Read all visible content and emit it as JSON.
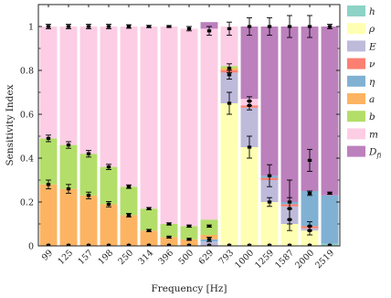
{
  "chart_data": {
    "type": "bar",
    "stacked": true,
    "xlabel": "Frequency [Hz]",
    "ylabel": "Sensitivity Index",
    "ylim": [
      0,
      1.1
    ],
    "yticks": [
      "0",
      "0.2",
      "0.4",
      "0.6",
      "0.8",
      "1"
    ],
    "grid": false,
    "legend_position": "right",
    "categories": [
      "99",
      "125",
      "157",
      "198",
      "250",
      "314",
      "396",
      "500",
      "629",
      "793",
      "1000",
      "1259",
      "1587",
      "2000",
      "2519"
    ],
    "series": [
      {
        "name": "h",
        "symbol": "h",
        "sub": "",
        "color": "#8dd3c7",
        "values": [
          0,
          0,
          0,
          0,
          0,
          0,
          0,
          0,
          0,
          0,
          0,
          0,
          0,
          0,
          0.01
        ]
      },
      {
        "name": "ρ",
        "symbol": "ρ",
        "sub": "",
        "color": "#ffffb3",
        "values": [
          0,
          0,
          0,
          0,
          0,
          0,
          0,
          0,
          0,
          0.65,
          0.45,
          0.2,
          0.1,
          0.07,
          0
        ]
      },
      {
        "name": "E",
        "symbol": "E",
        "sub": "",
        "color": "#bebada",
        "values": [
          0,
          0,
          0,
          0,
          0,
          0,
          0,
          0,
          0.02,
          0.14,
          0.18,
          0.1,
          0.08,
          0.01,
          0
        ]
      },
      {
        "name": "ν",
        "symbol": "ν",
        "sub": "",
        "color": "#fb8072",
        "values": [
          0,
          0,
          0,
          0,
          0,
          0,
          0,
          0,
          0,
          0.01,
          0.01,
          0.01,
          0.01,
          0.01,
          0
        ]
      },
      {
        "name": "η",
        "symbol": "η",
        "sub": "",
        "color": "#80b1d3",
        "values": [
          0,
          0,
          0,
          0,
          0,
          0,
          0,
          0,
          0.01,
          0,
          0,
          0.01,
          0.01,
          0.16,
          0.22
        ]
      },
      {
        "name": "a",
        "symbol": "a",
        "sub": "",
        "color": "#fdb462",
        "values": [
          0.28,
          0.26,
          0.23,
          0.19,
          0.14,
          0.07,
          0.04,
          0.03,
          0.02,
          0.01,
          0,
          0,
          0,
          0,
          0
        ]
      },
      {
        "name": "b",
        "symbol": "b",
        "sub": "",
        "color": "#b3de69",
        "values": [
          0.21,
          0.2,
          0.19,
          0.17,
          0.13,
          0.1,
          0.06,
          0.06,
          0.07,
          0.01,
          0,
          0,
          0,
          0,
          0
        ]
      },
      {
        "name": "m",
        "symbol": "m",
        "sub": "",
        "color": "#fccde5",
        "values": [
          0.51,
          0.54,
          0.58,
          0.64,
          0.73,
          0.83,
          0.9,
          0.9,
          0.87,
          0.18,
          0.03,
          0,
          0,
          0,
          0
        ]
      },
      {
        "name": "Dfi",
        "symbol": "D",
        "sub": "fi",
        "color": "#bc80bd",
        "values": [
          0,
          0,
          0,
          0,
          0,
          0,
          0,
          0,
          0.03,
          0,
          0.33,
          0.68,
          0.8,
          0.75,
          0.77
        ]
      }
    ],
    "error_markers": [
      {
        "x": "99",
        "y": 1.0,
        "err": 0.01
      },
      {
        "x": "99",
        "y": 0.49,
        "err": 0.015
      },
      {
        "x": "99",
        "y": 0.28,
        "err": 0.02
      },
      {
        "x": "125",
        "y": 1.0,
        "err": 0.01
      },
      {
        "x": "125",
        "y": 0.46,
        "err": 0.015
      },
      {
        "x": "125",
        "y": 0.26,
        "err": 0.02
      },
      {
        "x": "157",
        "y": 1.0,
        "err": 0.01
      },
      {
        "x": "157",
        "y": 0.42,
        "err": 0.015
      },
      {
        "x": "157",
        "y": 0.23,
        "err": 0.015
      },
      {
        "x": "198",
        "y": 1.0,
        "err": 0.01
      },
      {
        "x": "198",
        "y": 0.36,
        "err": 0.012
      },
      {
        "x": "198",
        "y": 0.19,
        "err": 0.012
      },
      {
        "x": "250",
        "y": 1.0,
        "err": 0.008
      },
      {
        "x": "250",
        "y": 0.27,
        "err": 0.008
      },
      {
        "x": "250",
        "y": 0.14,
        "err": 0.008
      },
      {
        "x": "314",
        "y": 1.0,
        "err": 0.005
      },
      {
        "x": "314",
        "y": 0.17,
        "err": 0.005
      },
      {
        "x": "314",
        "y": 0.07,
        "err": 0.005
      },
      {
        "x": "396",
        "y": 1.0,
        "err": 0.004
      },
      {
        "x": "396",
        "y": 0.1,
        "err": 0.005
      },
      {
        "x": "396",
        "y": 0.04,
        "err": 0.004
      },
      {
        "x": "500",
        "y": 0.99,
        "err": 0.01
      },
      {
        "x": "500",
        "y": 0.09,
        "err": 0.005
      },
      {
        "x": "500",
        "y": 0.03,
        "err": 0.004
      },
      {
        "x": "629",
        "y": 0.98,
        "err": 0.02
      },
      {
        "x": "629",
        "y": 0.09,
        "err": 0.005
      },
      {
        "x": "629",
        "y": 0.03,
        "err": 0.01
      },
      {
        "x": "793",
        "y": 0.99,
        "err": 0.03
      },
      {
        "x": "793",
        "y": 0.81,
        "err": 0.02
      },
      {
        "x": "793",
        "y": 0.78,
        "err": 0.02
      },
      {
        "x": "793",
        "y": 0.65,
        "err": 0.05
      },
      {
        "x": "1000",
        "y": 1.0,
        "err": 0.04
      },
      {
        "x": "1000",
        "y": 0.66,
        "err": 0.02
      },
      {
        "x": "1000",
        "y": 0.64,
        "err": 0.02
      },
      {
        "x": "1000",
        "y": 0.45,
        "err": 0.05
      },
      {
        "x": "1259",
        "y": 1.0,
        "err": 0.04
      },
      {
        "x": "1259",
        "y": 0.32,
        "err": 0.05
      },
      {
        "x": "1259",
        "y": 0.2,
        "err": 0.02
      },
      {
        "x": "1587",
        "y": 1.0,
        "err": 0.05
      },
      {
        "x": "1587",
        "y": 0.2,
        "err": 0.1
      },
      {
        "x": "1587",
        "y": 0.17,
        "err": 0.05
      },
      {
        "x": "1587",
        "y": 0.12,
        "err": 0.05
      },
      {
        "x": "2000",
        "y": 1.0,
        "err": 0.05
      },
      {
        "x": "2000",
        "y": 0.39,
        "err": 0.05
      },
      {
        "x": "2000",
        "y": 0.24,
        "err": 0.01
      },
      {
        "x": "2000",
        "y": 0.09,
        "err": 0.02
      },
      {
        "x": "2000",
        "y": 0.07,
        "err": 0.02
      },
      {
        "x": "2519",
        "y": 1.0,
        "err": 0.01
      },
      {
        "x": "2519",
        "y": 0.24,
        "err": 0.005
      }
    ]
  }
}
